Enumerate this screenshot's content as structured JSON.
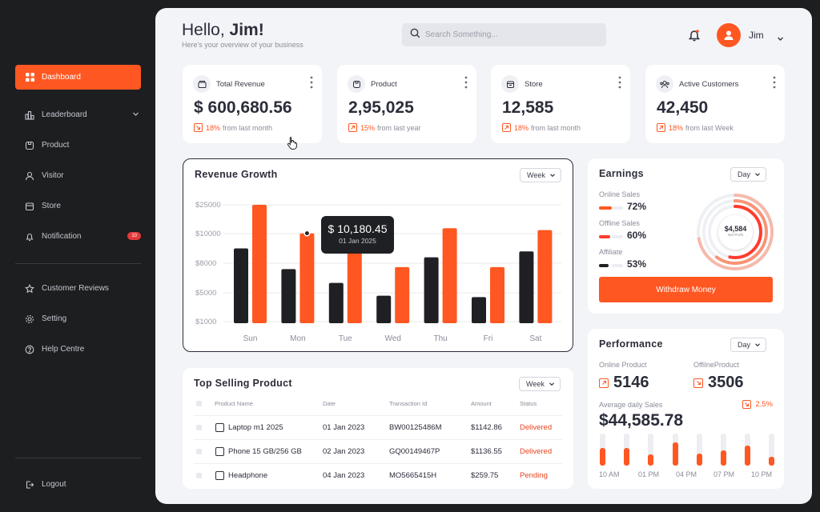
{
  "sidebar": {
    "items": [
      {
        "label": "Dashboard"
      },
      {
        "label": "Leaderboard"
      },
      {
        "label": "Product"
      },
      {
        "label": "Visitor"
      },
      {
        "label": "Store"
      },
      {
        "label": "Notification",
        "badge": "10"
      },
      {
        "label": "Customer Reviews"
      },
      {
        "label": "Setting"
      },
      {
        "label": "Help Centre"
      }
    ],
    "logout": "Logout"
  },
  "header": {
    "greeting_prefix": "Hello, ",
    "greeting_name": "Jim!",
    "subtitle": "Here's your overview of your business",
    "search_placeholder": "Search Something...",
    "user_name": "Jim"
  },
  "stats": [
    {
      "label": "Total Revenue",
      "value": "$ 600,680.56",
      "pct": "18%",
      "period": "from last month",
      "icon": "wallet-icon"
    },
    {
      "label": "Product",
      "value": "2,95,025",
      "pct": "15%",
      "period": "from last year",
      "icon": "box-icon"
    },
    {
      "label": "Store",
      "value": "12,585",
      "pct": "18%",
      "period": "from last month",
      "icon": "store-icon"
    },
    {
      "label": "Active Customers",
      "value": "42,450",
      "pct": "18%",
      "period": "from last Week",
      "icon": "users-icon"
    }
  ],
  "revenue": {
    "title": "Revenue Growth",
    "filter": "Week",
    "tooltip_value": "$ 10,180.45",
    "tooltip_date": "01 Jan 2025"
  },
  "chart_data": {
    "type": "bar",
    "categories": [
      "Sun",
      "Mon",
      "Tue",
      "Wed",
      "Thu",
      "Fri",
      "Sat"
    ],
    "yticks": [
      "$25000",
      "$10000",
      "$8000",
      "$5000",
      "$1000"
    ],
    "ytick_values": [
      25000,
      10000,
      8000,
      5000,
      1000
    ],
    "series": [
      {
        "color": "#1f2024",
        "values": [
          9000,
          7400,
          6000,
          4600,
          8400,
          4400,
          8800
        ]
      },
      {
        "color": "#ff5722",
        "values": [
          25000,
          10180,
          8800,
          7600,
          12800,
          7600,
          11800
        ]
      }
    ],
    "grid": true
  },
  "top_selling": {
    "title": "Top Selling Product",
    "filter": "Week",
    "columns": [
      "Product Name",
      "Date",
      "Transaction Id",
      "Amount",
      "Status"
    ],
    "rows": [
      {
        "name": "Laptop m1 2025",
        "date": "01 Jan 2023",
        "txn": "BW00125486M",
        "amount": "$1142.86",
        "status": "Delivered"
      },
      {
        "name": "Phone 15 GB/256 GB",
        "date": "02 Jan 2023",
        "txn": "GQ00149467P",
        "amount": "$1136.55",
        "status": "Delivered"
      },
      {
        "name": "Headphone",
        "date": "04 Jan 2023",
        "txn": "MO5665415H",
        "amount": "$259.75",
        "status": "Pending"
      }
    ]
  },
  "earnings": {
    "title": "Earnings",
    "filter": "Day",
    "items": [
      {
        "label": "Online Sales",
        "pct": "72%",
        "fraction": 0.72,
        "color": "#ff5722"
      },
      {
        "label": "Offline Sales",
        "pct": "60%",
        "fraction": 0.6,
        "color": "#ff3d2e"
      },
      {
        "label": "Affiliate",
        "pct": "53%",
        "fraction": 0.53,
        "color": "#1f2024"
      }
    ],
    "center_value": "$4,584",
    "center_label": "Net Profit",
    "button": "Withdraw Money"
  },
  "performance": {
    "title": "Performance",
    "filter": "Day",
    "online_label": "Online Product",
    "online_value": "5146",
    "offline_label": "OffilneProduct",
    "offline_value": "3506",
    "avg_label": "Average daily Sales",
    "avg_value": "$44,585.78",
    "avg_pct": "2.5%",
    "time_ticks": [
      "10 AM",
      "01 PM",
      "04 PM",
      "07 PM",
      "10 PM"
    ],
    "bar_levels": [
      0.55,
      0.55,
      0.35,
      0.72,
      0.38,
      0.48,
      0.62,
      0.28
    ]
  }
}
